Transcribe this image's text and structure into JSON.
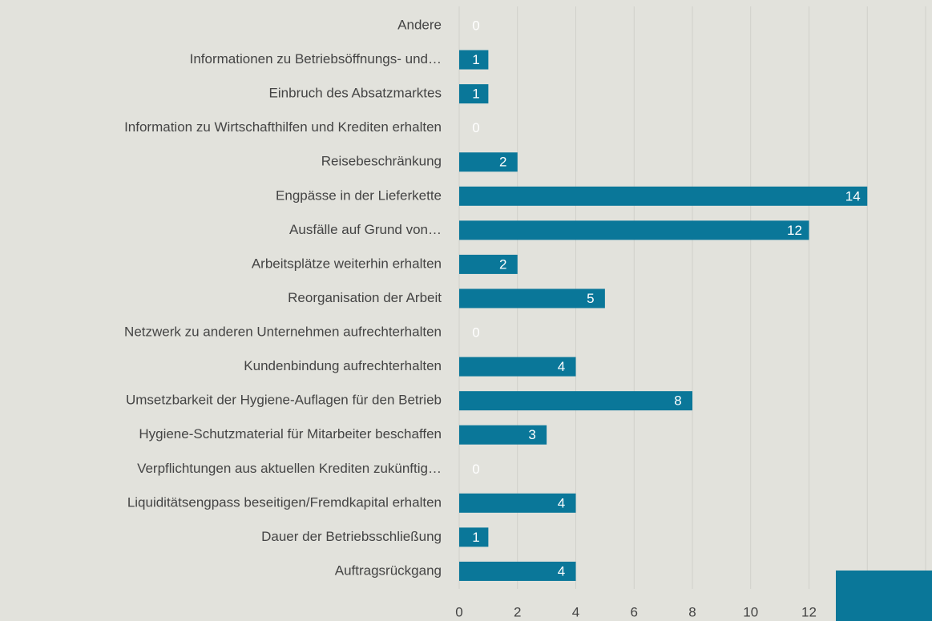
{
  "chart_data": {
    "type": "barh",
    "categories": [
      "Andere",
      "Informationen zu Betriebsöffnungs- und…",
      "Einbruch des Absatzmarktes",
      "Information zu Wirtschafthilfen und Krediten erhalten",
      "Reisebeschränkung",
      "Engpässe in der Lieferkette",
      "Ausfälle auf Grund von…",
      "Arbeitsplätze weiterhin erhalten",
      "Reorganisation der Arbeit",
      "Netzwerk zu anderen Unternehmen aufrechterhalten",
      "Kundenbindung aufrechterhalten",
      "Umsetzbarkeit der Hygiene-Auflagen für den Betrieb",
      "Hygiene-Schutzmaterial für Mitarbeiter beschaffen",
      "Verpflichtungen aus aktuellen Krediten zukünftig…",
      "Liquiditätsengpass beseitigen/Fremdkapital erhalten",
      "Dauer der Betriebsschließung",
      "Auftragsrückgang"
    ],
    "values": [
      0,
      1,
      1,
      0,
      2,
      14,
      12,
      2,
      5,
      0,
      4,
      8,
      3,
      0,
      4,
      1,
      4
    ],
    "color": "#0a7799",
    "xlim": [
      0,
      16
    ],
    "xticks": [
      0,
      2,
      4,
      6,
      8,
      10,
      12,
      14,
      16
    ],
    "grid": true
  }
}
